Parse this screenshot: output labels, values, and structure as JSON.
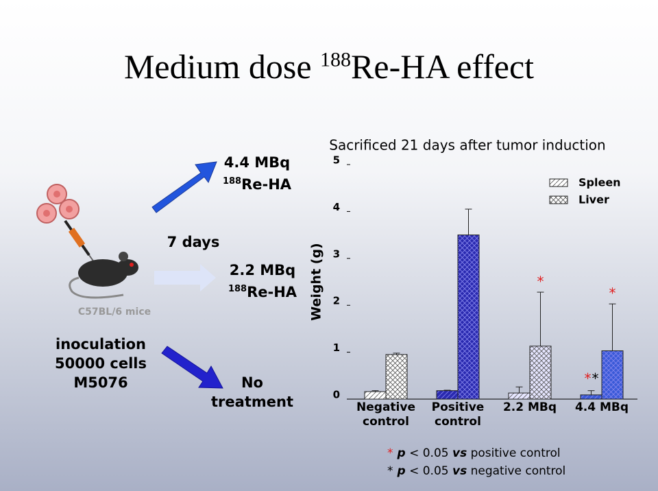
{
  "slide_title": {
    "prefix": "Medium dose ",
    "superscript": "188",
    "suffix": "Re-HA effect"
  },
  "mouse_label": "C57BL/6 mice",
  "inoculation": [
    "inoculation",
    "50000 cells",
    "M5076"
  ],
  "interval": "7 days",
  "groups": [
    {
      "dose": "4.4 MBq",
      "superscript": "188",
      "agent": "Re-HA"
    },
    {
      "dose": "2.2 MBq",
      "superscript": "188",
      "agent": "Re-HA"
    },
    {
      "dose": "No treatment"
    }
  ],
  "chart_data": {
    "type": "bar",
    "title": "Sacrificed 21 days after tumor induction",
    "y_label": "Weight (g)",
    "categories": [
      "Negative control",
      "Positive control",
      "2.2 MBq",
      "4.4 MBq"
    ],
    "series": [
      {
        "name": "Spleen",
        "color": "#3344cc",
        "colors": [
          "#ffffff",
          "#2a2ab0",
          "#e6e6ff",
          "#3a5ad8"
        ],
        "hatch": "diagonal",
        "values": [
          0.16,
          0.18,
          0.13,
          0.09
        ],
        "errors": [
          0.02,
          0.01,
          0.13,
          0.09
        ]
      },
      {
        "name": "Liver",
        "color": "#3344cc",
        "colors": [
          "#ffffff",
          "#2a2ab0",
          "#e6e6ff",
          "#3a5ad8"
        ],
        "hatch": "cross",
        "values": [
          0.95,
          3.5,
          1.13,
          1.03
        ],
        "errors": [
          0.03,
          0.55,
          1.15,
          1.0
        ]
      }
    ],
    "ylim": [
      0,
      5
    ],
    "yticks": [
      0,
      1,
      2,
      3,
      4,
      5
    ],
    "legend": "top-right",
    "annotations": [
      {
        "text": "*",
        "color": "#e02020"
      },
      {
        "text": "*",
        "color": "#e02020"
      },
      {
        "text": "*",
        "color": "#e02020"
      },
      {
        "text": "*",
        "color": "#000000"
      }
    ],
    "footnotes": [
      {
        "mark": "*",
        "color": "#e02020",
        "parts": [
          "p",
          " < 0.05 ",
          "vs",
          " positive control"
        ]
      },
      {
        "mark": "*",
        "color": "#000000",
        "parts": [
          "p",
          " < 0.05 ",
          "vs",
          " negative control"
        ]
      }
    ]
  }
}
